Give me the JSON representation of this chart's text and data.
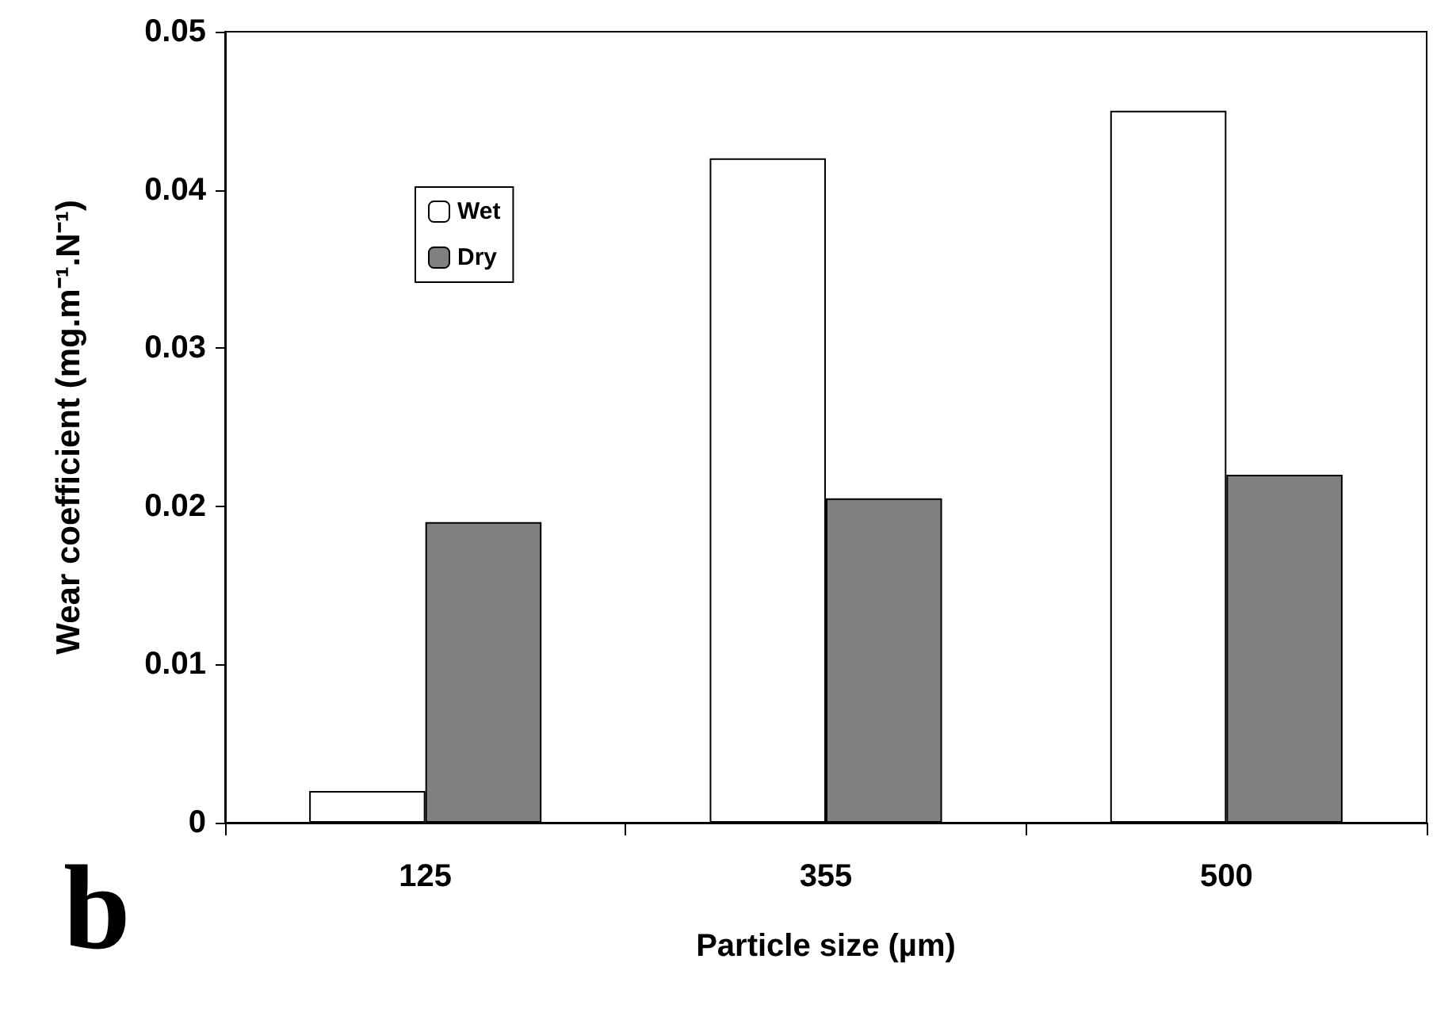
{
  "chart_data": {
    "type": "bar",
    "xlabel": "Particle size (µm)",
    "ylabel": "Wear coefficient (mg.m⁻¹.N⁻¹)",
    "categories": [
      "125",
      "355",
      "500"
    ],
    "series": [
      {
        "name": "Wet",
        "color": "#ffffff",
        "values": [
          0.002,
          0.042,
          0.045
        ]
      },
      {
        "name": "Dry",
        "color": "#808080",
        "values": [
          0.019,
          0.0205,
          0.022
        ]
      }
    ],
    "ylim": [
      0,
      0.05
    ],
    "yticks": [
      0,
      0.01,
      0.02,
      0.03,
      0.04,
      0.05
    ],
    "grid": false,
    "legend": "top left",
    "annotations": [
      "b"
    ]
  }
}
